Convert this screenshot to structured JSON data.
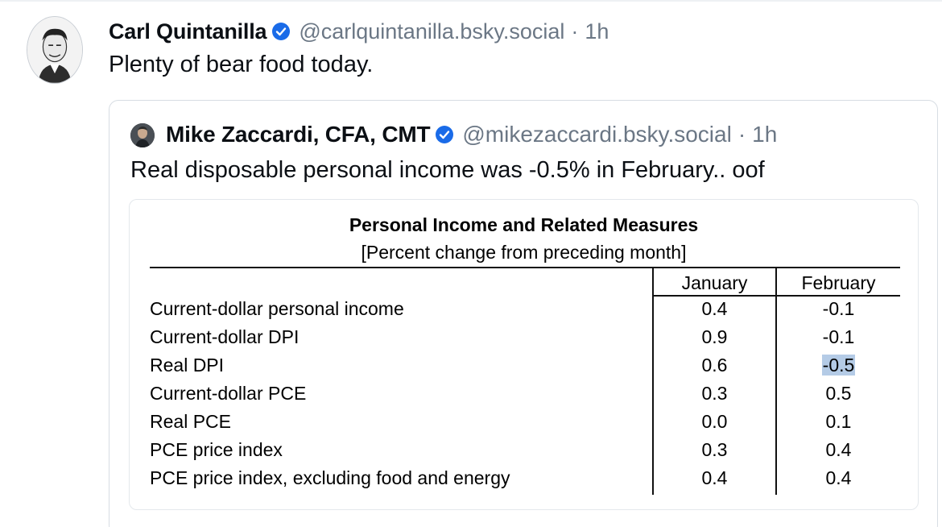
{
  "post": {
    "author_name": "Carl Quintanilla",
    "handle": "@carlquintanilla.bsky.social",
    "separator": "·",
    "time": "1h",
    "text": "Plenty of bear food today."
  },
  "quote": {
    "author_name": "Mike Zaccardi, CFA, CMT",
    "handle": "@mikezaccardi.bsky.social",
    "separator": "·",
    "time": "1h",
    "text": "Real disposable personal income was -0.5% in February.. oof"
  },
  "image_table": {
    "title": "Personal Income and Related Measures",
    "subtitle": "[Percent change from preceding month]",
    "columns": [
      "January",
      "February"
    ],
    "rows": [
      {
        "label": "Current-dollar personal income",
        "values": [
          "0.4",
          "-0.1"
        ]
      },
      {
        "label": "Current-dollar DPI",
        "values": [
          "0.9",
          "-0.1"
        ]
      },
      {
        "label": "Real DPI",
        "values": [
          "0.6",
          "-0.5"
        ],
        "highlight_col": 1
      },
      {
        "label": "Current-dollar PCE",
        "values": [
          "0.3",
          "0.5"
        ]
      },
      {
        "label": "Real PCE",
        "values": [
          "0.0",
          "0.1"
        ]
      },
      {
        "label": "PCE price index",
        "values": [
          "0.3",
          "0.4"
        ]
      },
      {
        "label": "PCE price index, excluding food and energy",
        "values": [
          "0.4",
          "0.4"
        ]
      }
    ],
    "highlight_color": "#b4cbe6"
  },
  "colors": {
    "verified_badge": "#1a6be8",
    "muted_text": "#6b7785",
    "border": "#d7dde3"
  },
  "icons": {
    "verified": "verified-check-icon"
  }
}
